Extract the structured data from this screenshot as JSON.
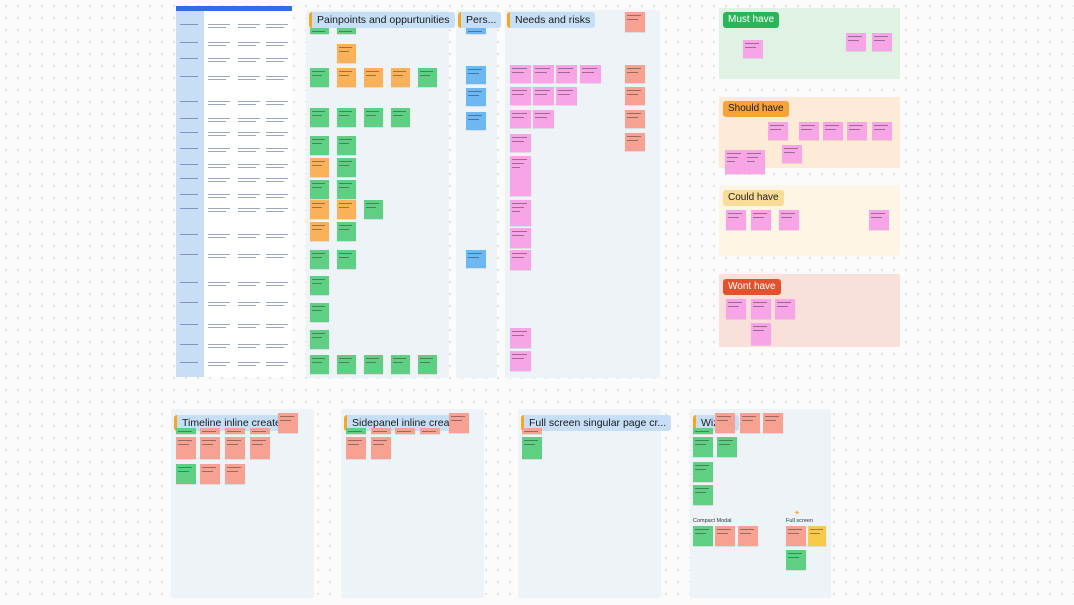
{
  "sections": {
    "painpoints": "Painpoints and oppurtunities",
    "personas": "Pers...",
    "needs": "Needs and risks",
    "timeline": "Timeline inline create",
    "sidepanel": "Sidepanel inline create",
    "fullscreen_page": "Full screen singular page cr...",
    "wizard": "Wizard",
    "compact_modal": "Compact Modal",
    "full_screen": "Full screen"
  },
  "priorities": {
    "must": "Must have",
    "should": "Should have",
    "could": "Could have",
    "wont": "Wont have"
  },
  "colors": {
    "green_sticky": "#5ecf83",
    "orange_sticky": "#f9b15a",
    "pink_sticky": "#f7a5e6",
    "salmon_sticky": "#f6a192",
    "blue_sticky": "#6db7f2",
    "must_bg": "#dff2e4",
    "should_bg": "#fdebd8",
    "could_bg": "#fdf6e6",
    "wont_bg": "#f9e0db"
  }
}
